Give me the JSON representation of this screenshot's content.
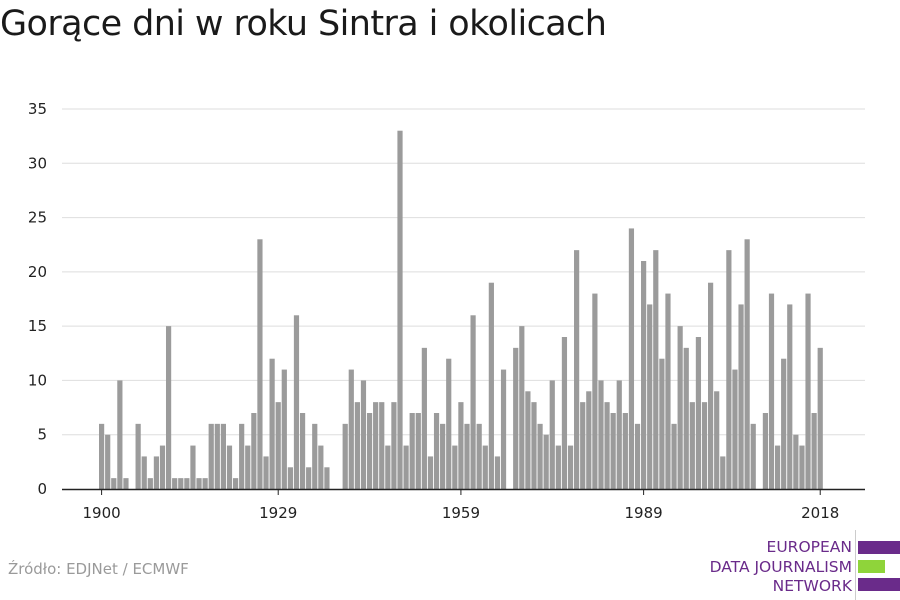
{
  "title": "Gorące dni w roku Sintra i okolicach",
  "source": "Źródło: EDJNet / ECMWF",
  "logo": {
    "lines": [
      "EUROPEAN",
      "DATA JOURNALISM",
      "NETWORK"
    ],
    "colors": [
      "#6a2b8a",
      "#8fd43a",
      "#6a2b8a"
    ]
  },
  "colors": {
    "bar": "#9b9b9b",
    "grid": "#dedede",
    "axis": "#222222",
    "text": "#222222"
  },
  "chart_data": {
    "type": "bar",
    "x_start": 1900,
    "x_end": 2018,
    "x_ticks": [
      1900,
      1929,
      1959,
      1989,
      2018
    ],
    "ylim": [
      0,
      35
    ],
    "y_ticks": [
      0,
      5,
      10,
      15,
      20,
      25,
      30,
      35
    ],
    "grid": true,
    "xlabel": "",
    "ylabel": "",
    "years": [
      1900,
      1901,
      1902,
      1903,
      1904,
      1905,
      1906,
      1907,
      1908,
      1909,
      1910,
      1911,
      1912,
      1913,
      1914,
      1915,
      1916,
      1917,
      1918,
      1919,
      1920,
      1921,
      1922,
      1923,
      1924,
      1925,
      1926,
      1927,
      1928,
      1929,
      1930,
      1931,
      1932,
      1933,
      1934,
      1935,
      1936,
      1937,
      1938,
      1939,
      1940,
      1941,
      1942,
      1943,
      1944,
      1945,
      1946,
      1947,
      1948,
      1949,
      1950,
      1951,
      1952,
      1953,
      1954,
      1955,
      1956,
      1957,
      1958,
      1959,
      1960,
      1961,
      1962,
      1963,
      1964,
      1965,
      1966,
      1967,
      1968,
      1969,
      1970,
      1971,
      1972,
      1973,
      1974,
      1975,
      1976,
      1977,
      1978,
      1979,
      1980,
      1981,
      1982,
      1983,
      1984,
      1985,
      1986,
      1987,
      1988,
      1989,
      1990,
      1991,
      1992,
      1993,
      1994,
      1995,
      1996,
      1997,
      1998,
      1999,
      2000,
      2001,
      2002,
      2003,
      2004,
      2005,
      2006,
      2007,
      2008,
      2009,
      2010,
      2011,
      2012,
      2013,
      2014,
      2015,
      2016,
      2017,
      2018
    ],
    "values": [
      6,
      5,
      1,
      10,
      1,
      0,
      6,
      3,
      1,
      3,
      4,
      15,
      1,
      1,
      1,
      4,
      1,
      1,
      6,
      6,
      6,
      4,
      1,
      6,
      4,
      7,
      23,
      3,
      12,
      8,
      11,
      2,
      16,
      7,
      2,
      6,
      4,
      2,
      0,
      0,
      6,
      11,
      8,
      10,
      7,
      8,
      8,
      4,
      8,
      33,
      4,
      7,
      7,
      13,
      3,
      7,
      6,
      12,
      4,
      8,
      6,
      16,
      6,
      4,
      19,
      3,
      11,
      0,
      13,
      15,
      9,
      8,
      6,
      5,
      10,
      4,
      14,
      4,
      22,
      8,
      9,
      18,
      10,
      8,
      7,
      10,
      7,
      24,
      6,
      21,
      17,
      22,
      12,
      18,
      6,
      15,
      13,
      8,
      14,
      8,
      19,
      9,
      3,
      22,
      11,
      17,
      23,
      6,
      0,
      7,
      18,
      4,
      12,
      17,
      5,
      4,
      18,
      7,
      13
    ]
  }
}
